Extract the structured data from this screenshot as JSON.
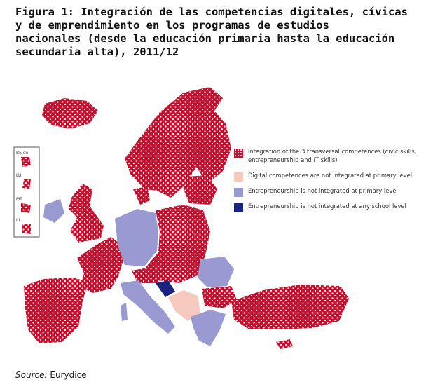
{
  "title": "Figura 1: Integración de las competencias digitales, cívicas\ny de emprendimiento  en los programas de estudios\nnacionales (desde la educación primaria hasta la educación\nsecundaria alta), 2011/12",
  "legend": [
    {
      "label": "Integration of the 3 transversal competences (civic skills, entrepreneurship and IT skills)",
      "color": "#c8102e"
    },
    {
      "label": "Digital competences are not integrated at primary level",
      "color": "#f6c9bf"
    },
    {
      "label": "Entrepreneurship is not integrated at primary level",
      "color": "#9a9ad2"
    },
    {
      "label": "Entrepreneurship is not integrated at any school level",
      "color": "#1a237e"
    }
  ],
  "inset_labels": [
    "BE de",
    "LU",
    "MT",
    "LI"
  ],
  "source": {
    "label": "Source:",
    "value": "Eurydice"
  }
}
